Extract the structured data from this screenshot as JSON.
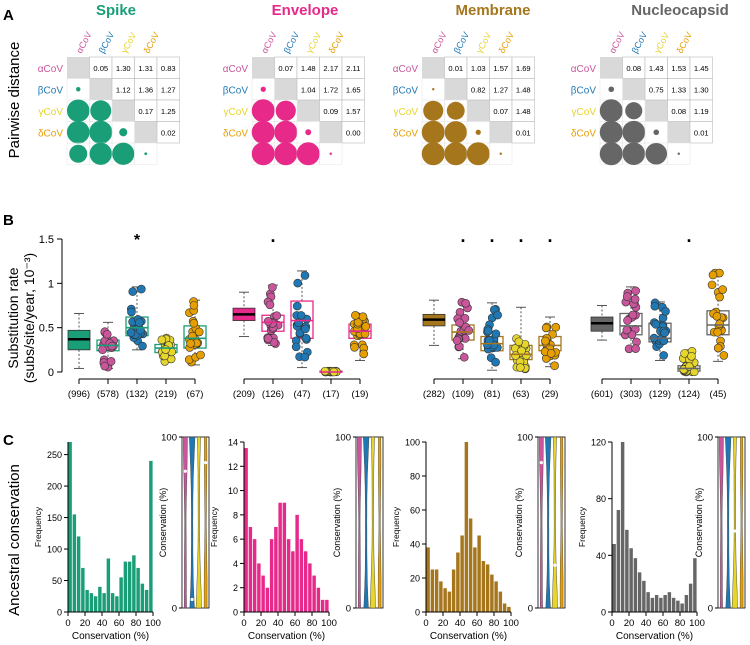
{
  "colors": {
    "spike": "#1a9e77",
    "envelope": "#e7298a",
    "membrane": "#a6761d",
    "nucleocapsid": "#666666",
    "alpha": "#c9569b",
    "beta": "#1f78b4",
    "gamma": "#e6d52a",
    "delta": "#e69f00"
  },
  "proteins": [
    "Spike",
    "Envelope",
    "Membrane",
    "Nucleocapsid"
  ],
  "genera": [
    "αCoV",
    "βCoV",
    "γCoV",
    "δCoV"
  ],
  "panel_a": {
    "letter": "A",
    "row_label": "Pairwise distance",
    "matrices": [
      {
        "protein": "Spike",
        "upper": [
          [
            0.05,
            1.3,
            1.31,
            0.83
          ],
          [
            1.12,
            1.36,
            1.27
          ],
          [
            0.17,
            1.25
          ],
          [
            0.02
          ]
        ]
      },
      {
        "protein": "Envelope",
        "upper": [
          [
            0.07,
            1.48,
            2.17,
            2.11
          ],
          [
            1.04,
            1.72,
            1.65
          ],
          [
            0.09,
            1.57
          ],
          [
            0.0
          ]
        ]
      },
      {
        "protein": "Membrane",
        "upper": [
          [
            0.01,
            1.03,
            1.57,
            1.69
          ],
          [
            0.82,
            1.27,
            1.48
          ],
          [
            0.07,
            1.48
          ],
          [
            0.01
          ]
        ]
      },
      {
        "protein": "Nucleocapsid",
        "upper": [
          [
            0.08,
            1.43,
            1.53,
            1.45
          ],
          [
            0.75,
            1.33,
            1.3
          ],
          [
            0.08,
            1.19
          ],
          [
            0.01
          ]
        ]
      }
    ]
  },
  "panel_b": {
    "letter": "B",
    "ylabel_line1": "Substitution rate",
    "ylabel_line2": "(subs/site/year, 10⁻³)",
    "ylim": [
      0,
      1.5
    ],
    "yticks": [
      "0",
      "0.5",
      "1",
      "1.5"
    ],
    "groups": [
      {
        "protein": "Spike",
        "boxes": [
          {
            "genus": "all",
            "n": "(996)",
            "q1": 0.25,
            "median": 0.37,
            "q3": 0.47,
            "lo": 0.04,
            "hi": 0.66,
            "mark": ""
          },
          {
            "genus": "alpha",
            "n": "(578)",
            "q1": 0.24,
            "median": 0.3,
            "q3": 0.36,
            "lo": 0.04,
            "hi": 0.56,
            "mark": ""
          },
          {
            "genus": "beta",
            "n": "(132)",
            "q1": 0.41,
            "median": 0.5,
            "q3": 0.62,
            "lo": 0.25,
            "hi": 0.96,
            "mark": "*"
          },
          {
            "genus": "gamma",
            "n": "(219)",
            "q1": 0.22,
            "median": 0.27,
            "q3": 0.31,
            "lo": 0.11,
            "hi": 0.39,
            "mark": ""
          },
          {
            "genus": "delta",
            "n": "(67)",
            "q1": 0.27,
            "median": 0.38,
            "q3": 0.52,
            "lo": 0.08,
            "hi": 0.81,
            "mark": ""
          }
        ]
      },
      {
        "protein": "Envelope",
        "boxes": [
          {
            "genus": "all",
            "n": "(209)",
            "q1": 0.58,
            "median": 0.65,
            "q3": 0.72,
            "lo": 0.4,
            "hi": 0.9,
            "mark": ""
          },
          {
            "genus": "alpha",
            "n": "(126)",
            "q1": 0.46,
            "median": 0.56,
            "q3": 0.64,
            "lo": 0.3,
            "hi": 0.98,
            "mark": "."
          },
          {
            "genus": "beta",
            "n": "(47)",
            "q1": 0.38,
            "median": 0.58,
            "q3": 0.8,
            "lo": 0.05,
            "hi": 1.14,
            "mark": ""
          },
          {
            "genus": "gamma",
            "n": "(17)",
            "q1": 0.0,
            "median": 0.0,
            "q3": 0.01,
            "lo": 0.0,
            "hi": 0.01,
            "mark": ""
          },
          {
            "genus": "delta",
            "n": "(19)",
            "q1": 0.38,
            "median": 0.46,
            "q3": 0.54,
            "lo": 0.13,
            "hi": 0.64,
            "mark": ""
          }
        ]
      },
      {
        "protein": "Membrane",
        "boxes": [
          {
            "genus": "all",
            "n": "(282)",
            "q1": 0.52,
            "median": 0.59,
            "q3": 0.65,
            "lo": 0.3,
            "hi": 0.81,
            "mark": ""
          },
          {
            "genus": "alpha",
            "n": "(109)",
            "q1": 0.36,
            "median": 0.45,
            "q3": 0.53,
            "lo": 0.15,
            "hi": 0.8,
            "mark": "."
          },
          {
            "genus": "beta",
            "n": "(81)",
            "q1": 0.24,
            "median": 0.32,
            "q3": 0.4,
            "lo": 0.02,
            "hi": 0.78,
            "mark": "."
          },
          {
            "genus": "gamma",
            "n": "(63)",
            "q1": 0.14,
            "median": 0.2,
            "q3": 0.3,
            "lo": 0.02,
            "hi": 0.73,
            "mark": "."
          },
          {
            "genus": "delta",
            "n": "(29)",
            "q1": 0.24,
            "median": 0.3,
            "q3": 0.4,
            "lo": 0.06,
            "hi": 0.62,
            "mark": "."
          }
        ]
      },
      {
        "protein": "Nucleocapsid",
        "boxes": [
          {
            "genus": "all",
            "n": "(601)",
            "q1": 0.46,
            "median": 0.55,
            "q3": 0.62,
            "lo": 0.36,
            "hi": 0.75,
            "mark": ""
          },
          {
            "genus": "alpha",
            "n": "(303)",
            "q1": 0.42,
            "median": 0.52,
            "q3": 0.66,
            "lo": 0.26,
            "hi": 0.96,
            "mark": ""
          },
          {
            "genus": "beta",
            "n": "(129)",
            "q1": 0.34,
            "median": 0.38,
            "q3": 0.55,
            "lo": 0.13,
            "hi": 0.79,
            "mark": ""
          },
          {
            "genus": "gamma",
            "n": "(124)",
            "q1": 0.01,
            "median": 0.04,
            "q3": 0.07,
            "lo": 0.0,
            "hi": 0.25,
            "mark": "."
          },
          {
            "genus": "delta",
            "n": "(45)",
            "q1": 0.42,
            "median": 0.53,
            "q3": 0.69,
            "lo": 0.12,
            "hi": 1.13,
            "mark": ""
          }
        ]
      }
    ]
  },
  "chart_data": [
    {
      "type": "heatmap",
      "title": "Pairwise distance",
      "rows": [
        "αCoV",
        "βCoV",
        "γCoV",
        "δCoV"
      ],
      "columns": [
        "αCoV",
        "βCoV",
        "γCoV",
        "δCoV"
      ],
      "note": "upper triangle printed values; lower triangle drawn as circles scaled by same distances",
      "panels": [
        "Spike",
        "Envelope",
        "Membrane",
        "Nucleocapsid"
      ]
    },
    {
      "type": "box",
      "title": "Substitution rate",
      "ylabel": "Substitution rate (subs/site/year, 10⁻³)",
      "ylim": [
        0,
        1.5
      ],
      "panels": [
        "Spike",
        "Envelope",
        "Membrane",
        "Nucleocapsid"
      ]
    },
    {
      "type": "bar",
      "title": "Ancestral conservation",
      "xlabel": "Conservation (%)",
      "ylabel": "Frequency",
      "x": [
        2.5,
        7.5,
        12.5,
        17.5,
        22.5,
        27.5,
        32.5,
        37.5,
        42.5,
        47.5,
        52.5,
        57.5,
        62.5,
        67.5,
        72.5,
        77.5,
        82.5,
        87.5,
        92.5,
        97.5
      ],
      "series": [
        {
          "name": "Spike",
          "ylim": [
            0,
            270
          ],
          "yticks": [
            0,
            50,
            100,
            150,
            200,
            250
          ],
          "values": [
            270,
            155,
            120,
            70,
            35,
            30,
            25,
            40,
            30,
            85,
            30,
            25,
            55,
            80,
            80,
            90,
            70,
            45,
            35,
            240
          ]
        },
        {
          "name": "Envelope",
          "ylim": [
            0,
            14
          ],
          "yticks": [
            0,
            2,
            4,
            6,
            8,
            10,
            12,
            14
          ],
          "values": [
            13.5,
            7,
            6,
            4,
            3,
            2,
            6,
            7,
            9,
            9,
            6,
            5,
            8,
            6,
            5,
            4,
            3,
            2,
            1,
            1
          ]
        },
        {
          "name": "Membrane",
          "ylim": [
            0,
            100
          ],
          "yticks": [
            0,
            20,
            40,
            60,
            80,
            100
          ],
          "values": [
            38,
            25,
            25,
            18,
            14,
            12,
            25,
            35,
            45,
            100,
            55,
            38,
            45,
            30,
            28,
            22,
            18,
            12,
            5,
            3
          ]
        },
        {
          "name": "Nucleocapsid",
          "ylim": [
            0,
            120
          ],
          "yticks": [
            0,
            40,
            80,
            120
          ],
          "values": [
            48,
            72,
            120,
            58,
            45,
            38,
            28,
            22,
            14,
            10,
            12,
            10,
            12,
            14,
            10,
            8,
            6,
            12,
            20,
            38
          ]
        }
      ]
    }
  ],
  "panel_c": {
    "letter": "C",
    "row_label": "Ancestral conservation",
    "hist_xlabel": "Conservation (%)",
    "hist_ylabel": "Frequency",
    "violin_ylabel": "Conservation (%)",
    "xticks": [
      "0",
      "20",
      "40",
      "60",
      "80",
      "100"
    ],
    "violin_yticks": [
      "0",
      "100"
    ],
    "violin_medians": [
      {
        "protein": "Spike",
        "alpha": 80,
        "beta": 5,
        "gamma": null,
        "delta": 85
      },
      {
        "protein": "Envelope",
        "alpha": null,
        "beta": null,
        "gamma": null,
        "delta": null
      },
      {
        "protein": "Membrane",
        "alpha": 85,
        "beta": null,
        "gamma": 25,
        "delta": null
      },
      {
        "protein": "Nucleocapsid",
        "alpha": null,
        "beta": null,
        "gamma": 45,
        "delta": null
      }
    ]
  }
}
